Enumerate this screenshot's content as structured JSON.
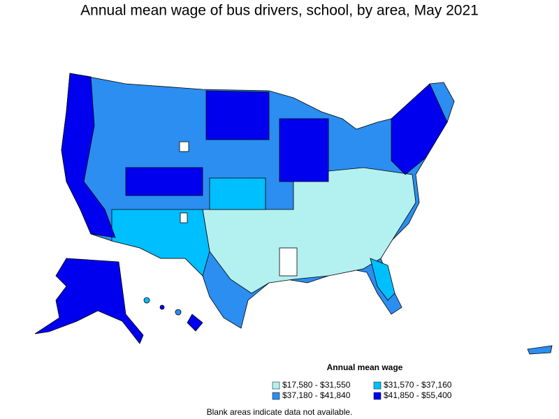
{
  "title": "Annual mean wage of bus drivers, school, by area, May 2021",
  "legend": {
    "title": "Annual mean wage",
    "items": [
      {
        "label": "$17,580 - $31,550",
        "color": "#b3f0f0"
      },
      {
        "label": "$31,570 - $37,160",
        "color": "#00bfff"
      },
      {
        "label": "$37,180 - $41,840",
        "color": "#2b8ef0"
      },
      {
        "label": "$41,850 - $55,400",
        "color": "#0000ee"
      }
    ]
  },
  "footnote": "Blank areas indicate data not available."
}
